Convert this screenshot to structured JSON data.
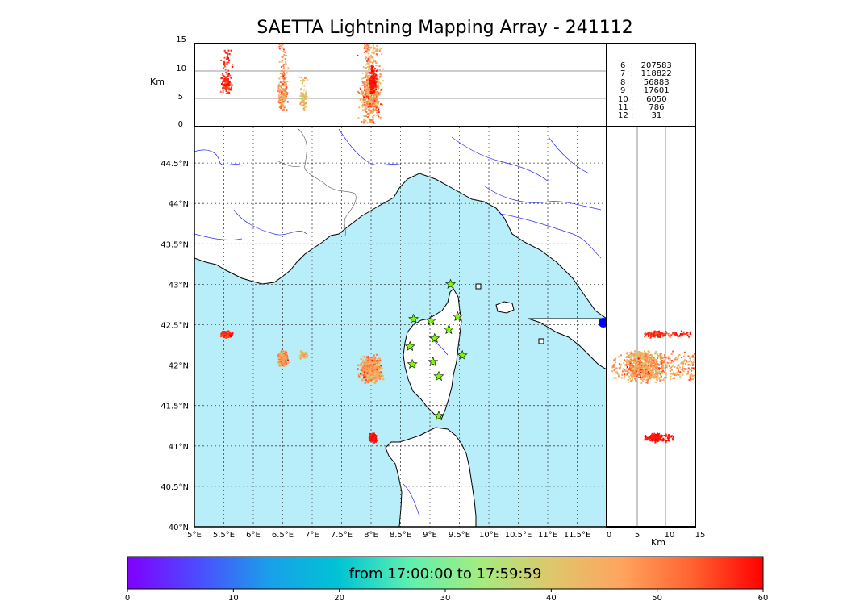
{
  "title": "SAETTA Lightning Mapping Array - 241112",
  "map": {
    "lon_labels": [
      "5°E",
      "5.5°E",
      "6°E",
      "6.5°E",
      "7°E",
      "7.5°E",
      "8°E",
      "8.5°E",
      "9°E",
      "9.5°E",
      "10°E",
      "10.5°E",
      "11°E",
      "11.5°E"
    ],
    "lat_labels": [
      "40°N",
      "40.5°N",
      "41°N",
      "41.5°N",
      "42°N",
      "42.5°N",
      "43°N",
      "43.5°N",
      "44°N",
      "44.5°N"
    ],
    "lon_range": [
      5.0,
      12.0
    ],
    "lat_range": [
      40.0,
      44.95
    ],
    "sea_color": "#b7eefa",
    "land_color": "#ffffff",
    "station_color": "#7cfc00",
    "stations": [
      {
        "lon": 9.35,
        "lat": 43.0
      },
      {
        "lon": 8.72,
        "lat": 42.57
      },
      {
        "lon": 9.02,
        "lat": 42.55
      },
      {
        "lon": 9.47,
        "lat": 42.6
      },
      {
        "lon": 9.32,
        "lat": 42.44
      },
      {
        "lon": 9.08,
        "lat": 42.33
      },
      {
        "lon": 8.66,
        "lat": 42.23
      },
      {
        "lon": 9.55,
        "lat": 42.12
      },
      {
        "lon": 8.7,
        "lat": 42.01
      },
      {
        "lon": 9.05,
        "lat": 42.04
      },
      {
        "lon": 9.15,
        "lat": 41.86
      },
      {
        "lon": 9.15,
        "lat": 41.37
      }
    ]
  },
  "top_panel": {
    "ylabel": "Km",
    "ticks": [
      "0",
      "5",
      "10",
      "15"
    ]
  },
  "right_panel": {
    "xlabel": "Km",
    "ticks": [
      "0",
      "5",
      "10",
      "15"
    ]
  },
  "counts": [
    {
      "label": "6  :   207583",
      "color": "#000000"
    },
    {
      "label": "7  :   118822",
      "color": "#ff0000"
    },
    {
      "label": "8  :    56883",
      "color": "#000000"
    },
    {
      "label": "9  :    17601",
      "color": "#000000"
    },
    {
      "label": "10 :     6050",
      "color": "#000000"
    },
    {
      "label": "11 :      786",
      "color": "#000000"
    },
    {
      "label": "12 :       31",
      "color": "#000000"
    }
  ],
  "colorbar": {
    "label": "from 17:00:00 to 17:59:59",
    "ticks": [
      "0",
      "10",
      "20",
      "30",
      "40",
      "50",
      "60"
    ],
    "colors": [
      "#8000ff",
      "#4c4cff",
      "#1a9fea",
      "#00c4d4",
      "#5ff0b0",
      "#a4ec7f",
      "#dec76c",
      "#ffa45e",
      "#ff6230",
      "#ff0000"
    ]
  },
  "chart_data": {
    "type": "scatter",
    "title": "SAETTA Lightning Mapping Array - 241112",
    "x_axis": "longitude",
    "y_axis": "latitude",
    "time_range": "from 17:00:00 to 17:59:59",
    "time_colorbar_ticks": [
      0,
      10,
      20,
      30,
      40,
      50,
      60
    ],
    "station_counts": {
      "6": 207583,
      "7": 118822,
      "8": 56883,
      "9": 17601,
      "10": 6050,
      "11": 786,
      "12": 31
    },
    "clusters": [
      {
        "lon": 5.55,
        "lat": 42.38,
        "time_min": 57,
        "alt_km": 8,
        "alt_range_km": [
          6,
          14
        ]
      },
      {
        "lon": 6.5,
        "lat": 42.08,
        "time_min": 48,
        "alt_km": 6,
        "alt_range_km": [
          3,
          15
        ]
      },
      {
        "lon": 6.85,
        "lat": 42.13,
        "time_min": 42,
        "alt_km": 5,
        "alt_range_km": [
          2,
          9
        ]
      },
      {
        "lon": 8.0,
        "lat": 41.95,
        "time_min": 47,
        "alt_km": 6,
        "alt_range_km": [
          0.5,
          15
        ]
      },
      {
        "lon": 8.03,
        "lat": 41.1,
        "time_min": 59,
        "alt_km": 8,
        "alt_range_km": [
          6,
          11
        ]
      }
    ]
  }
}
